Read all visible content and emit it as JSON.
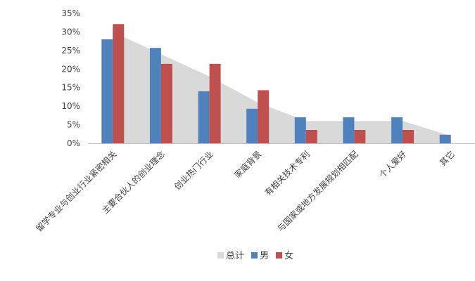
{
  "chart_data": {
    "type": "bar",
    "categories": [
      "留学专业与创业行业紧密相关",
      "主要合伙人的创业理念",
      "创业热门行业",
      "家庭背景",
      "有相关技术专利",
      "与国家或地方发展规划相匹配",
      "个人爱好",
      "其它"
    ],
    "series": [
      {
        "name": "总计",
        "kind": "area",
        "color": "#d9d9d9",
        "values": [
          30,
          24,
          18,
          11,
          6,
          6,
          6,
          2
        ]
      },
      {
        "name": "男",
        "kind": "bar",
        "color": "#4f81bd",
        "values": [
          28,
          25.7,
          14,
          9.3,
          7,
          7,
          7,
          2.3
        ]
      },
      {
        "name": "女",
        "kind": "bar",
        "color": "#c0504d",
        "values": [
          32.1,
          21.4,
          21.4,
          14.3,
          3.6,
          3.6,
          3.6,
          0
        ]
      }
    ],
    "y_ticks": [
      "0%",
      "5%",
      "10%",
      "15%",
      "20%",
      "25%",
      "30%",
      "35%"
    ],
    "ylim": [
      0,
      35
    ],
    "grid": false,
    "legend_position": "bottom",
    "legend": [
      "总计",
      "男",
      "女"
    ]
  }
}
